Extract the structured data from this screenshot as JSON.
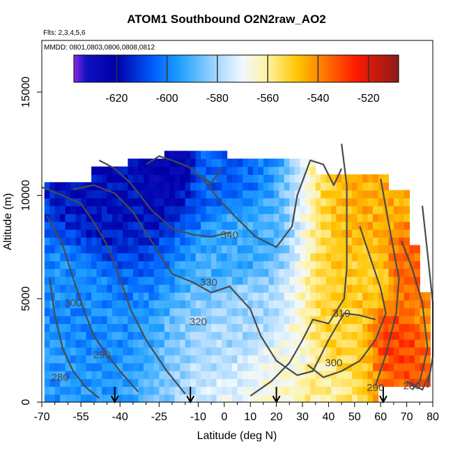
{
  "title": "ATOM1 Southbound O2N2raw_AO2",
  "flights_note": "Flts: 2,3,4,5,6",
  "dates_note": "MMDD: 0801,0803,0806,0808,0812",
  "chart_data": {
    "type": "heatmap",
    "title": "ATOM1 Southbound O2N2raw_AO2",
    "xlabel": "Latitude (deg N)",
    "ylabel": "Altitude (m)",
    "xlim": [
      -70,
      80
    ],
    "ylim": [
      0,
      17500
    ],
    "x_ticks": [
      -70,
      -55,
      -40,
      -25,
      -10,
      0,
      10,
      20,
      30,
      40,
      50,
      60,
      70,
      80
    ],
    "x_minor_ticks": [
      -65,
      -60,
      -50,
      -45,
      -35,
      -30,
      -20,
      -15,
      -5,
      5,
      15,
      25,
      35,
      45,
      55,
      65,
      75
    ],
    "y_ticks": [
      0,
      5000,
      10000,
      15000
    ],
    "colorbar": {
      "ticks": [
        -620,
        -600,
        -580,
        -560,
        -540,
        -520
      ],
      "range": [
        -637,
        -508
      ],
      "stops": [
        {
          "v": -637,
          "c": "#8a2be2"
        },
        {
          "v": -632,
          "c": "#1010c0"
        },
        {
          "v": -620,
          "c": "#0000a8"
        },
        {
          "v": -605,
          "c": "#0060ff"
        },
        {
          "v": -595,
          "c": "#1ea0ff"
        },
        {
          "v": -580,
          "c": "#a8d8ff"
        },
        {
          "v": -570,
          "c": "#f0f8ff"
        },
        {
          "v": -560,
          "c": "#fff3a0"
        },
        {
          "v": -548,
          "c": "#ffc400"
        },
        {
          "v": -538,
          "c": "#ff7a00"
        },
        {
          "v": -525,
          "c": "#ff1a00"
        },
        {
          "v": -508,
          "c": "#8b1a1a"
        }
      ]
    },
    "field_samples": [
      {
        "lat": -68,
        "alt": 500,
        "value": -596
      },
      {
        "lat": -60,
        "alt": 5000,
        "value": -598
      },
      {
        "lat": -45,
        "alt": 10000,
        "value": -618
      },
      {
        "lat": -20,
        "alt": 11500,
        "value": -624
      },
      {
        "lat": -5,
        "alt": 11000,
        "value": -605
      },
      {
        "lat": 5,
        "alt": 7500,
        "value": -592
      },
      {
        "lat": 10,
        "alt": 4000,
        "value": -580
      },
      {
        "lat": 25,
        "alt": 2000,
        "value": -568
      },
      {
        "lat": 35,
        "alt": 1000,
        "value": -560
      },
      {
        "lat": 45,
        "alt": 3000,
        "value": -552
      },
      {
        "lat": 55,
        "alt": 6000,
        "value": -550
      },
      {
        "lat": 60,
        "alt": 10000,
        "value": -545
      },
      {
        "lat": 68,
        "alt": 3000,
        "value": -530
      },
      {
        "lat": 72,
        "alt": 6500,
        "value": -535
      },
      {
        "lat": 78,
        "alt": 4000,
        "value": -540
      }
    ],
    "contour_labels": [
      {
        "text": "340",
        "lat": 2,
        "alt": 8100
      },
      {
        "text": "330",
        "lat": -6,
        "alt": 5800
      },
      {
        "text": "320",
        "lat": -10,
        "alt": 3900
      },
      {
        "text": "310",
        "lat": 45,
        "alt": 4300
      },
      {
        "text": "300",
        "lat": -58,
        "alt": 4800
      },
      {
        "text": "300",
        "lat": 42,
        "alt": 1900
      },
      {
        "text": "290",
        "lat": -47,
        "alt": 2300
      },
      {
        "text": "290",
        "lat": 58,
        "alt": 700
      },
      {
        "text": "280",
        "lat": -63,
        "alt": 1200
      },
      {
        "text": "280",
        "lat": 72,
        "alt": 800
      }
    ],
    "arrow_latitudes": [
      -42,
      -13,
      20,
      61
    ]
  }
}
